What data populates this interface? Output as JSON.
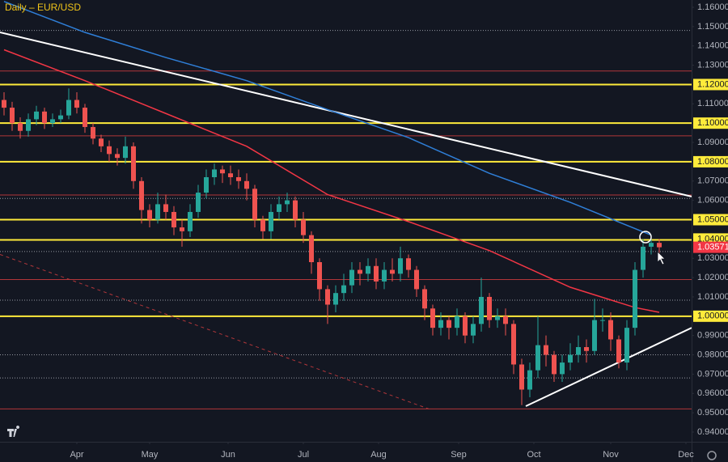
{
  "chart_data": {
    "type": "candlestick",
    "title": "Daily – EUR/USD",
    "up_color": "#26a69a",
    "down_color": "#ef5350",
    "open": [
      1.112,
      1.108,
      1.1,
      1.096,
      1.102,
      1.106,
      1.1,
      1.102,
      1.104,
      1.112,
      1.108,
      1.098,
      1.092,
      1.088,
      1.084,
      1.082,
      1.088,
      1.07,
      1.055,
      1.05,
      1.058,
      1.054,
      1.046,
      1.044,
      1.054,
      1.064,
      1.072,
      1.076,
      1.074,
      1.072,
      1.07,
      1.066,
      1.05,
      1.044,
      1.054,
      1.058,
      1.06,
      1.05,
      1.042,
      1.028,
      1.014,
      1.006,
      1.012,
      1.016,
      1.024,
      1.022,
      1.026,
      1.018,
      1.024,
      1.022,
      1.03,
      1.024,
      1.014,
      1.004,
      0.994,
      0.998,
      0.994,
      1.0,
      0.99,
      0.996,
      1.01,
      0.998,
      1.0,
      0.996,
      0.975,
      0.962,
      0.972,
      0.985,
      0.98,
      0.97,
      0.976,
      0.98,
      0.984,
      0.982,
      0.998,
      0.998,
      0.988,
      0.976,
      0.994,
      1.024,
      1.036,
      1.038
    ],
    "high": [
      1.116,
      1.111,
      1.103,
      1.105,
      1.109,
      1.108,
      1.105,
      1.107,
      1.118,
      1.116,
      1.11,
      1.1,
      1.094,
      1.091,
      1.087,
      1.093,
      1.09,
      1.072,
      1.058,
      1.064,
      1.063,
      1.057,
      1.05,
      1.058,
      1.068,
      1.076,
      1.079,
      1.078,
      1.078,
      1.076,
      1.074,
      1.068,
      1.052,
      1.058,
      1.062,
      1.064,
      1.062,
      1.054,
      1.044,
      1.03,
      1.016,
      1.016,
      1.022,
      1.028,
      1.028,
      1.03,
      1.03,
      1.028,
      1.03,
      1.036,
      1.032,
      1.026,
      1.016,
      1.006,
      1.002,
      1.0,
      1.004,
      1.002,
      1.0,
      1.02,
      1.012,
      1.004,
      1.004,
      0.998,
      0.978,
      0.976,
      1.0,
      0.99,
      0.982,
      0.98,
      0.986,
      0.99,
      0.988,
      1.009,
      1.004,
      1.002,
      0.99,
      0.998,
      1.028,
      1.04,
      1.042,
      1.04
    ],
    "low": [
      1.104,
      1.096,
      1.092,
      1.093,
      1.099,
      1.097,
      1.098,
      1.1,
      1.102,
      1.105,
      1.095,
      1.089,
      1.085,
      1.08,
      1.078,
      1.079,
      1.066,
      1.048,
      1.046,
      1.048,
      1.05,
      1.042,
      1.036,
      1.041,
      1.051,
      1.061,
      1.068,
      1.069,
      1.068,
      1.066,
      1.06,
      1.046,
      1.04,
      1.04,
      1.05,
      1.054,
      1.046,
      1.038,
      1.022,
      1.008,
      0.996,
      1.002,
      1.008,
      1.012,
      1.016,
      1.018,
      1.014,
      1.014,
      1.018,
      1.018,
      1.02,
      1.01,
      0.998,
      0.99,
      0.99,
      0.988,
      0.99,
      0.986,
      0.986,
      0.992,
      0.994,
      0.994,
      0.99,
      0.97,
      0.954,
      0.958,
      0.968,
      0.974,
      0.966,
      0.966,
      0.972,
      0.976,
      0.976,
      0.98,
      0.992,
      0.982,
      0.973,
      0.972,
      0.99,
      1.02,
      1.032,
      1.032
    ],
    "close": [
      1.108,
      1.1,
      1.096,
      1.102,
      1.106,
      1.1,
      1.102,
      1.104,
      1.112,
      1.108,
      1.098,
      1.092,
      1.088,
      1.084,
      1.082,
      1.088,
      1.07,
      1.055,
      1.05,
      1.058,
      1.054,
      1.046,
      1.044,
      1.054,
      1.064,
      1.072,
      1.076,
      1.074,
      1.072,
      1.07,
      1.066,
      1.05,
      1.044,
      1.054,
      1.058,
      1.06,
      1.05,
      1.042,
      1.028,
      1.014,
      1.006,
      1.012,
      1.016,
      1.024,
      1.022,
      1.026,
      1.018,
      1.024,
      1.022,
      1.03,
      1.024,
      1.014,
      1.004,
      0.994,
      0.998,
      0.994,
      1.0,
      0.99,
      0.996,
      1.01,
      0.998,
      1.0,
      0.996,
      0.975,
      0.962,
      0.972,
      0.985,
      0.98,
      0.97,
      0.976,
      0.98,
      0.984,
      0.982,
      0.998,
      0.998,
      0.988,
      0.976,
      0.994,
      1.024,
      1.036,
      1.038,
      1.03571
    ],
    "series": [
      {
        "color": "#2f7fd8",
        "x": [
          0,
          10,
          20,
          30,
          40,
          50,
          60,
          70,
          80
        ],
        "values": [
          1.163,
          1.147,
          1.134,
          1.122,
          1.107,
          1.0925,
          1.074,
          1.059,
          1.042
        ]
      },
      {
        "color": "#f23645",
        "x": [
          0,
          10,
          20,
          30,
          40,
          50,
          60,
          70,
          78,
          81
        ],
        "values": [
          1.138,
          1.122,
          1.105,
          1.088,
          1.063,
          1.049,
          1.034,
          1.015,
          1.0045,
          1.002
        ]
      }
    ],
    "trendlines": [
      {
        "color": "#ffffff",
        "dash": false,
        "x": [
          -0.5,
          85
        ],
        "values": [
          1.147,
          1.062
        ]
      },
      {
        "color": "#ffffff",
        "dash": false,
        "x": [
          64.5,
          85
        ],
        "values": [
          0.9534,
          0.994
        ]
      },
      {
        "color": "#b2363a",
        "dash": true,
        "x": [
          -0.5,
          52.5
        ],
        "values": [
          1.032,
          0.952
        ]
      }
    ],
    "levels": [
      {
        "value": 1.12,
        "color": "#ffeb3b",
        "style": "solid"
      },
      {
        "value": 1.1,
        "color": "#ffeb3b",
        "style": "solid"
      },
      {
        "value": 1.08,
        "color": "#ffeb3b",
        "style": "solid"
      },
      {
        "value": 1.05,
        "color": "#ffeb3b",
        "style": "solid"
      },
      {
        "value": 1.0395,
        "color": "#ffeb3b",
        "style": "solid"
      },
      {
        "value": 1.0,
        "color": "#ffeb3b",
        "style": "solid"
      },
      {
        "value": 1.127,
        "color": "#b2363a",
        "style": "thin"
      },
      {
        "value": 1.0934,
        "color": "#b2363a",
        "style": "thin"
      },
      {
        "value": 1.0628,
        "color": "#b2363a",
        "style": "thin"
      },
      {
        "value": 1.019,
        "color": "#b2363a",
        "style": "thin"
      },
      {
        "value": 0.952,
        "color": "#b2363a",
        "style": "thin"
      },
      {
        "value": 1.148,
        "color": "#9598a1",
        "style": "dotted"
      },
      {
        "value": 1.061,
        "color": "#9598a1",
        "style": "dotted"
      },
      {
        "value": 1.0335,
        "color": "#9598a1",
        "style": "dotted"
      },
      {
        "value": 1.0083,
        "color": "#9598a1",
        "style": "dotted"
      },
      {
        "value": 0.98,
        "color": "#9598a1",
        "style": "dotted"
      },
      {
        "value": 0.968,
        "color": "#9598a1",
        "style": "dotted"
      }
    ],
    "xlim": [
      -0.5,
      85
    ],
    "xticks": [
      {
        "value": 9,
        "label": "Apr"
      },
      {
        "value": 18,
        "label": "May"
      },
      {
        "value": 27.7,
        "label": "Jun"
      },
      {
        "value": 37,
        "label": "Jul"
      },
      {
        "value": 46.3,
        "label": "Aug"
      },
      {
        "value": 56.2,
        "label": "Sep"
      },
      {
        "value": 65.5,
        "label": "Oct"
      },
      {
        "value": 75,
        "label": "Nov"
      },
      {
        "value": 84.3,
        "label": "Dec"
      }
    ],
    "ylim": [
      0.94,
      1.16
    ],
    "yticks": [
      {
        "value": 1.16,
        "label": "1.16000"
      },
      {
        "value": 1.15,
        "label": "1.15000"
      },
      {
        "value": 1.14,
        "label": "1.14000"
      },
      {
        "value": 1.13,
        "label": "1.13000"
      },
      {
        "value": 1.12,
        "label": "1.12000",
        "highlight": "#ffeb3b"
      },
      {
        "value": 1.11,
        "label": "1.11000"
      },
      {
        "value": 1.1,
        "label": "1.10000",
        "highlight": "#ffeb3b"
      },
      {
        "value": 1.09,
        "label": "1.09000"
      },
      {
        "value": 1.08,
        "label": "1.08000",
        "highlight": "#ffeb3b"
      },
      {
        "value": 1.07,
        "label": "1.07000"
      },
      {
        "value": 1.06,
        "label": "1.06000"
      },
      {
        "value": 1.05,
        "label": "1.05000",
        "highlight": "#ffeb3b"
      },
      {
        "value": 1.04,
        "label": "1.04000",
        "highlight": "#ffeb3b"
      },
      {
        "value": 1.03,
        "label": "1.03000"
      },
      {
        "value": 1.02,
        "label": "1.02000"
      },
      {
        "value": 1.01,
        "label": "1.01000"
      },
      {
        "value": 1.0,
        "label": "1.00000",
        "highlight": "#ffeb3b"
      },
      {
        "value": 0.99,
        "label": "0.99000"
      },
      {
        "value": 0.98,
        "label": "0.98000"
      },
      {
        "value": 0.97,
        "label": "0.97000"
      },
      {
        "value": 0.96,
        "label": "0.96000"
      },
      {
        "value": 0.95,
        "label": "0.95000"
      },
      {
        "value": 0.94,
        "label": "0.94000"
      }
    ],
    "last_price": {
      "value": 1.03571,
      "label": "1.03571",
      "color": "#f23645"
    },
    "grid": false
  }
}
